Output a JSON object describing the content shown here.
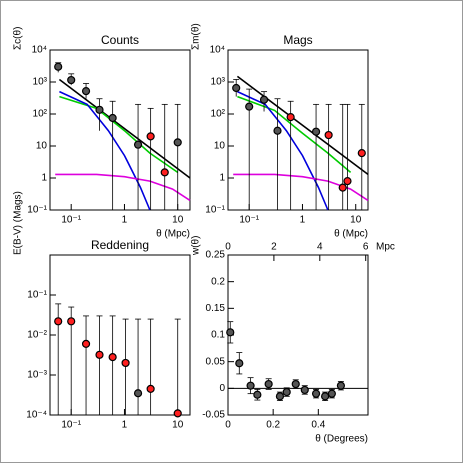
{
  "chart_data": [
    {
      "type": "scatter",
      "title": "Counts",
      "xlabel": "θ (Mpc)",
      "ylabel": "Σc(θ)",
      "xscale": "log",
      "yscale": "log",
      "xlim": [
        0.04,
        17
      ],
      "ylim": [
        0.1,
        10000
      ],
      "xticks": [
        {
          "value": 0.1,
          "label": "10⁻¹"
        },
        1,
        10
      ],
      "yticks": [
        {
          "value": 0.1,
          "label": "10⁻¹"
        },
        1,
        10,
        {
          "value": 100,
          "label": "10²"
        },
        {
          "value": 1000,
          "label": "10³"
        },
        {
          "value": 10000,
          "label": "10⁴"
        }
      ],
      "points": {
        "x": [
          0.057,
          0.1,
          0.19,
          0.34,
          0.6,
          1.8,
          3.1,
          5.7,
          10
        ],
        "values": [
          3000,
          1150,
          520,
          135,
          75,
          11,
          20,
          1.5,
          13
        ],
        "upper": [
          4000,
          1800,
          900,
          300,
          250,
          200,
          150,
          200,
          200
        ],
        "lower": [
          2000,
          800,
          300,
          30,
          0.1,
          0.1,
          0.1,
          0.1,
          0.1
        ],
        "colors": [
          "#555555",
          "#555555",
          "#555555",
          "#555555",
          "#555555",
          "#555555",
          "#ff2020",
          "#ff2020",
          "#555555"
        ]
      },
      "curves": [
        {
          "color": "#000000",
          "x": [
            0.06,
            17
          ],
          "values": [
            1200,
            1
          ]
        },
        {
          "color": "#00cc00",
          "x": [
            0.06,
            0.3,
            1,
            3,
            10
          ],
          "values": [
            350,
            150,
            30,
            6,
            1.5
          ]
        },
        {
          "color": "#0000dd",
          "x": [
            0.06,
            0.2,
            0.5,
            1,
            2,
            3
          ],
          "values": [
            500,
            200,
            30,
            5,
            0.5,
            0.1
          ]
        },
        {
          "color": "#dd00dd",
          "x": [
            0.05,
            0.3,
            1,
            3,
            8,
            17
          ],
          "values": [
            1.3,
            1.3,
            1.1,
            0.8,
            0.45,
            0.2
          ]
        }
      ]
    },
    {
      "type": "scatter",
      "title": "Mags",
      "xlabel": "θ (Mpc)",
      "ylabel": "Σm(θ)",
      "xscale": "log",
      "yscale": "log",
      "xlim": [
        0.04,
        17
      ],
      "ylim": [
        0.1,
        10000
      ],
      "xticks": [
        {
          "value": 0.1,
          "label": "10⁻¹"
        },
        1,
        10
      ],
      "yticks": [
        {
          "value": 0.1,
          "label": "10⁻¹"
        },
        1,
        10,
        {
          "value": 100,
          "label": "10²"
        },
        {
          "value": 1000,
          "label": "10³"
        },
        {
          "value": 10000,
          "label": "10⁴"
        }
      ],
      "points": {
        "x": [
          0.057,
          0.1,
          0.19,
          0.34,
          0.6,
          1.8,
          3.1,
          5.7,
          7,
          13
        ],
        "values": [
          650,
          170,
          280,
          30,
          80,
          28,
          22,
          0.5,
          0.8,
          6
        ],
        "upper": [
          1200,
          600,
          500,
          300,
          250,
          200,
          200,
          200,
          200,
          200
        ],
        "lower": [
          350,
          0.1,
          120,
          0.1,
          0.1,
          0.1,
          0.1,
          0.1,
          0.1,
          0.1
        ],
        "colors": [
          "#555555",
          "#555555",
          "#555555",
          "#555555",
          "#ff2020",
          "#555555",
          "#ff2020",
          "#ff2020",
          "#ff2020",
          "#ff2020"
        ]
      },
      "curves": [
        {
          "color": "#000000",
          "x": [
            0.06,
            17
          ],
          "values": [
            1500,
            1.3
          ]
        },
        {
          "color": "#00cc00",
          "x": [
            0.06,
            0.3,
            1,
            3,
            8
          ],
          "values": [
            350,
            130,
            25,
            6,
            1.5
          ]
        },
        {
          "color": "#0000dd",
          "x": [
            0.06,
            0.2,
            0.5,
            1,
            2,
            3
          ],
          "values": [
            500,
            200,
            30,
            5,
            0.5,
            0.1
          ]
        },
        {
          "color": "#dd00dd",
          "x": [
            0.05,
            0.3,
            1,
            3,
            8,
            17
          ],
          "values": [
            1.3,
            1.3,
            1.1,
            0.8,
            0.45,
            0.2
          ]
        }
      ]
    },
    {
      "type": "scatter",
      "title": "Reddening",
      "ylabel": "E(B-V) (Mags)",
      "xscale": "log",
      "yscale": "log",
      "xlim": [
        0.04,
        17
      ],
      "ylim": [
        0.0001,
        1
      ],
      "xticks": [
        {
          "value": 0.1,
          "label": "10⁻¹"
        },
        1,
        10
      ],
      "yticks": [
        {
          "value": 0.0001,
          "label": "10⁻⁴"
        },
        {
          "value": 0.001,
          "label": "10⁻³"
        },
        {
          "value": 0.01,
          "label": "10⁻²"
        },
        {
          "value": 0.1,
          "label": "10⁻¹"
        }
      ],
      "points": {
        "x": [
          0.057,
          0.1,
          0.19,
          0.34,
          0.6,
          1.05,
          1.8,
          3.1,
          10
        ],
        "values": [
          0.022,
          0.022,
          0.006,
          0.0032,
          0.0028,
          0.002,
          0.00035,
          0.00045,
          0.00011
        ],
        "upper": [
          0.06,
          0.05,
          0.03,
          0.03,
          0.03,
          0.025,
          0.025,
          0.025,
          0.025
        ],
        "lower": [
          0.0001,
          0.0001,
          0.0001,
          0.0001,
          0.0001,
          0.0001,
          0.0001,
          0.0001,
          0.0001
        ],
        "colors": [
          "#ff2020",
          "#ff2020",
          "#ff2020",
          "#ff2020",
          "#ff2020",
          "#ff2020",
          "#555555",
          "#ff2020",
          "#ff2020"
        ]
      }
    },
    {
      "type": "scatter",
      "xlabel": "θ (Degrees)",
      "ylabel": "w(θ)",
      "x2label": "Mpc",
      "xlim": [
        0,
        0.62
      ],
      "ylim": [
        -0.05,
        0.25
      ],
      "x2lim": [
        0,
        6.1
      ],
      "xticks": [
        0,
        0.2,
        0.4
      ],
      "x2ticks": [
        0,
        2,
        4,
        6
      ],
      "yticks": [
        -0.05,
        0,
        0.05,
        0.1,
        0.15,
        0.2,
        0.25
      ],
      "reference_line": 0,
      "points": {
        "x": [
          0.01,
          0.05,
          0.1,
          0.13,
          0.18,
          0.23,
          0.26,
          0.3,
          0.34,
          0.39,
          0.43,
          0.46,
          0.5
        ],
        "values": [
          0.105,
          0.047,
          0.005,
          -0.012,
          0.008,
          -0.015,
          -0.007,
          0.008,
          -0.003,
          -0.01,
          -0.015,
          -0.01,
          0.005
        ],
        "errors": [
          0.02,
          0.02,
          0.015,
          0.01,
          0.01,
          0.008,
          0.008,
          0.008,
          0.008,
          0.008,
          0.008,
          0.008,
          0.008
        ],
        "colors": [
          "#555555",
          "#555555",
          "#555555",
          "#555555",
          "#555555",
          "#555555",
          "#555555",
          "#555555",
          "#555555",
          "#555555",
          "#555555",
          "#555555",
          "#555555"
        ]
      }
    }
  ]
}
